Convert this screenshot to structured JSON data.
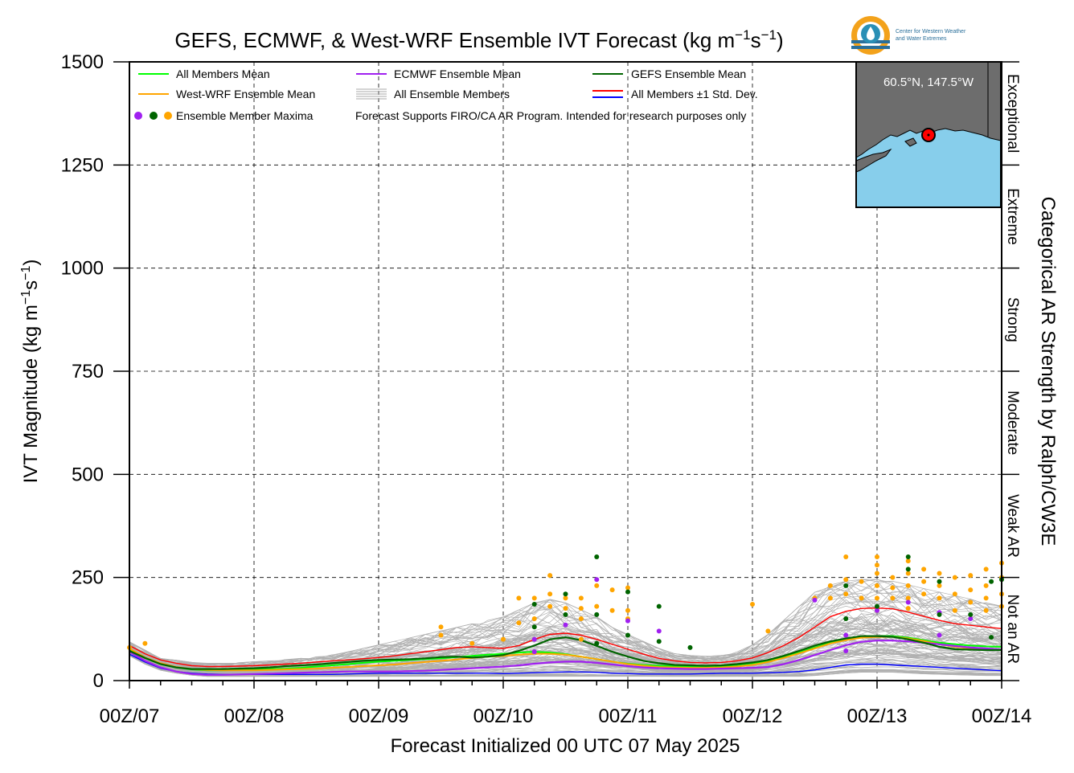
{
  "title_html_parts": {
    "prefix": "GEFS, ECMWF, & West-WRF Ensemble IVT Forecast (kg m",
    "sup1": "−1",
    "mid": "s",
    "sup2": "−1",
    "suffix": ")"
  },
  "logo": {
    "line1": "Center for Western Weather",
    "line2": "and Water Extremes"
  },
  "inset_map": {
    "label": "60.5°N, 147.5°W",
    "land_color": "#6d6d6d",
    "water_color": "#87ceeb"
  },
  "colors": {
    "all_members_mean": "#00ff00",
    "westwrf_mean": "#ffa500",
    "ecmwf_mean": "#a020f0",
    "gefs_mean": "#006400",
    "members": "#b0b0b0",
    "std_upper": "#ff0000",
    "std_lower": "#0000ff"
  },
  "legend": {
    "all_members_mean": "All Members Mean",
    "westwrf_mean": "West-WRF Ensemble Mean",
    "maxima": "Ensemble Member Maxima",
    "ecmwf_mean": "ECMWF Ensemble Mean",
    "all_members": "All Ensemble Members",
    "disclaimer": "Forecast Supports FIRO/CA AR Program. Intended for research purposes only",
    "gefs_mean": "GEFS Ensemble Mean",
    "std_dev": "All Members ±1 Std. Dev."
  },
  "right_axis": {
    "title": "Categorical AR Strength by Ralph/CW3E",
    "categories": [
      "Not an AR",
      "Weak AR",
      "Moderate",
      "Strong",
      "Extreme",
      "Exceptional"
    ]
  },
  "chart_data": {
    "type": "line",
    "title": "GEFS, ECMWF, & West-WRF Ensemble IVT Forecast (kg m−1s−1)",
    "xlabel": "Forecast Initialized 00 UTC 07 May 2025",
    "ylabel_parts": {
      "prefix": "IVT Magnitude (kg m",
      "sup1": "−1",
      "mid": "s",
      "sup2": "−1",
      "suffix": ")"
    },
    "ylim": [
      0,
      1500
    ],
    "yticks": [
      0,
      250,
      500,
      750,
      1000,
      1250,
      1500
    ],
    "xlim": [
      0,
      168
    ],
    "xticks": [
      0,
      24,
      48,
      72,
      96,
      120,
      144,
      168
    ],
    "xtick_labels": [
      "00Z/07",
      "00Z/08",
      "00Z/09",
      "00Z/10",
      "00Z/11",
      "00Z/12",
      "00Z/13",
      "00Z/14"
    ],
    "grid": true,
    "legend_position": "top-left",
    "x": [
      0,
      3,
      6,
      9,
      12,
      15,
      18,
      21,
      24,
      27,
      30,
      33,
      36,
      39,
      42,
      45,
      48,
      51,
      54,
      57,
      60,
      63,
      66,
      69,
      72,
      75,
      78,
      81,
      84,
      87,
      90,
      93,
      96,
      99,
      102,
      105,
      108,
      111,
      114,
      117,
      120,
      123,
      126,
      129,
      132,
      135,
      138,
      141,
      144,
      147,
      150,
      153,
      156,
      159,
      162,
      165,
      168
    ],
    "series": [
      {
        "name": "All Members Mean",
        "values": [
          75,
          55,
          40,
          32,
          27,
          25,
          25,
          26,
          27,
          28,
          29,
          31,
          34,
          37,
          40,
          43,
          46,
          48,
          50,
          52,
          54,
          57,
          60,
          63,
          65,
          68,
          70,
          68,
          64,
          58,
          52,
          46,
          41,
          38,
          36,
          35,
          34,
          34,
          35,
          38,
          42,
          48,
          58,
          68,
          80,
          92,
          100,
          106,
          108,
          108,
          104,
          98,
          92,
          88,
          85,
          83,
          82
        ]
      },
      {
        "name": "West-WRF Ensemble Mean",
        "values": [
          78,
          56,
          42,
          33,
          28,
          26,
          25,
          25,
          25,
          26,
          27,
          28,
          29,
          31,
          33,
          35,
          37,
          39,
          42,
          45,
          48,
          51,
          55,
          58,
          60,
          63,
          65,
          65,
          63,
          58,
          52,
          46,
          40,
          36,
          33,
          32,
          31,
          31,
          32,
          34,
          38,
          45,
          55,
          66,
          78,
          90,
          98,
          104,
          106,
          106,
          102,
          96,
          88,
          82,
          78,
          76,
          74
        ]
      },
      {
        "name": "ECMWF Ensemble Mean",
        "values": [
          70,
          48,
          32,
          22,
          16,
          14,
          14,
          15,
          16,
          17,
          18,
          19,
          20,
          21,
          22,
          22,
          22,
          22,
          23,
          24,
          26,
          28,
          30,
          32,
          34,
          37,
          41,
          44,
          46,
          46,
          43,
          39,
          35,
          32,
          30,
          29,
          28,
          28,
          29,
          30,
          31,
          33,
          40,
          50,
          62,
          74,
          86,
          94,
          97,
          97,
          95,
          92,
          88,
          84,
          80,
          78,
          75
        ]
      },
      {
        "name": "GEFS Ensemble Mean",
        "values": [
          72,
          55,
          40,
          32,
          28,
          28,
          28,
          29,
          30,
          32,
          35,
          37,
          39,
          42,
          45,
          48,
          50,
          51,
          52,
          54,
          57,
          58,
          56,
          58,
          62,
          72,
          85,
          100,
          105,
          98,
          84,
          70,
          58,
          48,
          42,
          38,
          37,
          36,
          37,
          40,
          44,
          50,
          60,
          72,
          85,
          95,
          102,
          108,
          108,
          106,
          100,
          92,
          82,
          76,
          75,
          74,
          74
        ]
      },
      {
        "name": "All Members +1 Std. Dev.",
        "values": [
          85,
          65,
          50,
          42,
          36,
          34,
          34,
          35,
          36,
          38,
          40,
          42,
          45,
          48,
          50,
          53,
          56,
          60,
          65,
          70,
          75,
          80,
          82,
          80,
          78,
          85,
          100,
          112,
          115,
          110,
          100,
          88,
          76,
          64,
          54,
          48,
          44,
          43,
          44,
          48,
          55,
          68,
          85,
          105,
          130,
          155,
          168,
          175,
          176,
          174,
          166,
          156,
          146,
          138,
          134,
          130,
          126
        ]
      },
      {
        "name": "All Members −1 Std. Dev.",
        "values": [
          64,
          45,
          30,
          22,
          18,
          16,
          15,
          15,
          15,
          15,
          15,
          15,
          15,
          15,
          16,
          17,
          18,
          18,
          18,
          18,
          18,
          18,
          18,
          18,
          17,
          18,
          19,
          20,
          21,
          21,
          20,
          18,
          17,
          16,
          16,
          16,
          16,
          17,
          18,
          18,
          18,
          19,
          20,
          22,
          26,
          32,
          38,
          40,
          40,
          38,
          36,
          34,
          32,
          30,
          28,
          26,
          24
        ]
      }
    ],
    "members_band": {
      "description_excluded": true,
      "low": [
        60,
        40,
        25,
        18,
        13,
        10,
        10,
        10,
        10,
        10,
        10,
        10,
        10,
        10,
        10,
        10,
        10,
        10,
        10,
        10,
        10,
        10,
        10,
        10,
        10,
        10,
        10,
        10,
        10,
        10,
        10,
        10,
        10,
        10,
        10,
        10,
        10,
        10,
        10,
        10,
        10,
        10,
        10,
        10,
        12,
        15,
        18,
        20,
        20,
        20,
        18,
        16,
        15,
        14,
        13,
        12,
        12
      ],
      "high": [
        100,
        80,
        62,
        55,
        50,
        48,
        48,
        50,
        52,
        55,
        58,
        62,
        66,
        72,
        80,
        90,
        100,
        110,
        120,
        130,
        140,
        150,
        160,
        170,
        180,
        200,
        220,
        230,
        220,
        200,
        180,
        150,
        130,
        110,
        90,
        75,
        70,
        68,
        70,
        80,
        100,
        130,
        170,
        210,
        250,
        270,
        280,
        285,
        285,
        280,
        270,
        260,
        250,
        240,
        230,
        220,
        210
      ]
    },
    "member_maxima": {
      "ecmwf": [
        [
          132,
          195
        ],
        [
          138,
          110
        ],
        [
          138,
          72
        ],
        [
          144,
          170
        ],
        [
          150,
          190
        ],
        [
          156,
          110
        ],
        [
          156,
          165
        ],
        [
          162,
          150
        ],
        [
          96,
          145
        ],
        [
          102,
          120
        ],
        [
          84,
          135
        ],
        [
          90,
          245
        ],
        [
          78,
          100
        ],
        [
          78,
          70
        ]
      ],
      "gefs": [
        [
          78,
          185
        ],
        [
          78,
          130
        ],
        [
          84,
          210
        ],
        [
          84,
          160
        ],
        [
          90,
          160
        ],
        [
          90,
          90
        ],
        [
          90,
          300
        ],
        [
          96,
          215
        ],
        [
          96,
          110
        ],
        [
          102,
          180
        ],
        [
          102,
          95
        ],
        [
          108,
          80
        ],
        [
          138,
          230
        ],
        [
          138,
          150
        ],
        [
          144,
          180
        ],
        [
          150,
          300
        ],
        [
          150,
          270
        ],
        [
          156,
          240
        ],
        [
          156,
          160
        ],
        [
          162,
          160
        ],
        [
          166,
          240
        ],
        [
          166,
          105
        ],
        [
          168,
          245
        ]
      ],
      "westwrf": [
        [
          0,
          80
        ],
        [
          3,
          90
        ],
        [
          60,
          130
        ],
        [
          60,
          110
        ],
        [
          66,
          90
        ],
        [
          72,
          100
        ],
        [
          75,
          200
        ],
        [
          75,
          140
        ],
        [
          78,
          200
        ],
        [
          78,
          150
        ],
        [
          81,
          255
        ],
        [
          81,
          210
        ],
        [
          81,
          180
        ],
        [
          84,
          200
        ],
        [
          84,
          175
        ],
        [
          87,
          200
        ],
        [
          87,
          175
        ],
        [
          87,
          150
        ],
        [
          87,
          100
        ],
        [
          90,
          230
        ],
        [
          90,
          180
        ],
        [
          93,
          220
        ],
        [
          93,
          170
        ],
        [
          96,
          225
        ],
        [
          96,
          170
        ],
        [
          96,
          150
        ],
        [
          120,
          185
        ],
        [
          123,
          120
        ],
        [
          132,
          200
        ],
        [
          135,
          230
        ],
        [
          135,
          200
        ],
        [
          138,
          300
        ],
        [
          138,
          245
        ],
        [
          138,
          210
        ],
        [
          141,
          240
        ],
        [
          141,
          200
        ],
        [
          144,
          300
        ],
        [
          144,
          280
        ],
        [
          144,
          260
        ],
        [
          144,
          230
        ],
        [
          144,
          200
        ],
        [
          144,
          170
        ],
        [
          147,
          250
        ],
        [
          147,
          225
        ],
        [
          147,
          200
        ],
        [
          150,
          290
        ],
        [
          150,
          260
        ],
        [
          150,
          230
        ],
        [
          150,
          200
        ],
        [
          150,
          175
        ],
        [
          153,
          270
        ],
        [
          153,
          240
        ],
        [
          153,
          210
        ],
        [
          156,
          260
        ],
        [
          156,
          230
        ],
        [
          156,
          200
        ],
        [
          159,
          250
        ],
        [
          159,
          210
        ],
        [
          159,
          170
        ],
        [
          162,
          255
        ],
        [
          162,
          220
        ],
        [
          162,
          190
        ],
        [
          165,
          270
        ],
        [
          165,
          230
        ],
        [
          165,
          200
        ],
        [
          165,
          170
        ],
        [
          168,
          285
        ],
        [
          168,
          250
        ],
        [
          168,
          210
        ],
        [
          168,
          180
        ]
      ]
    }
  }
}
